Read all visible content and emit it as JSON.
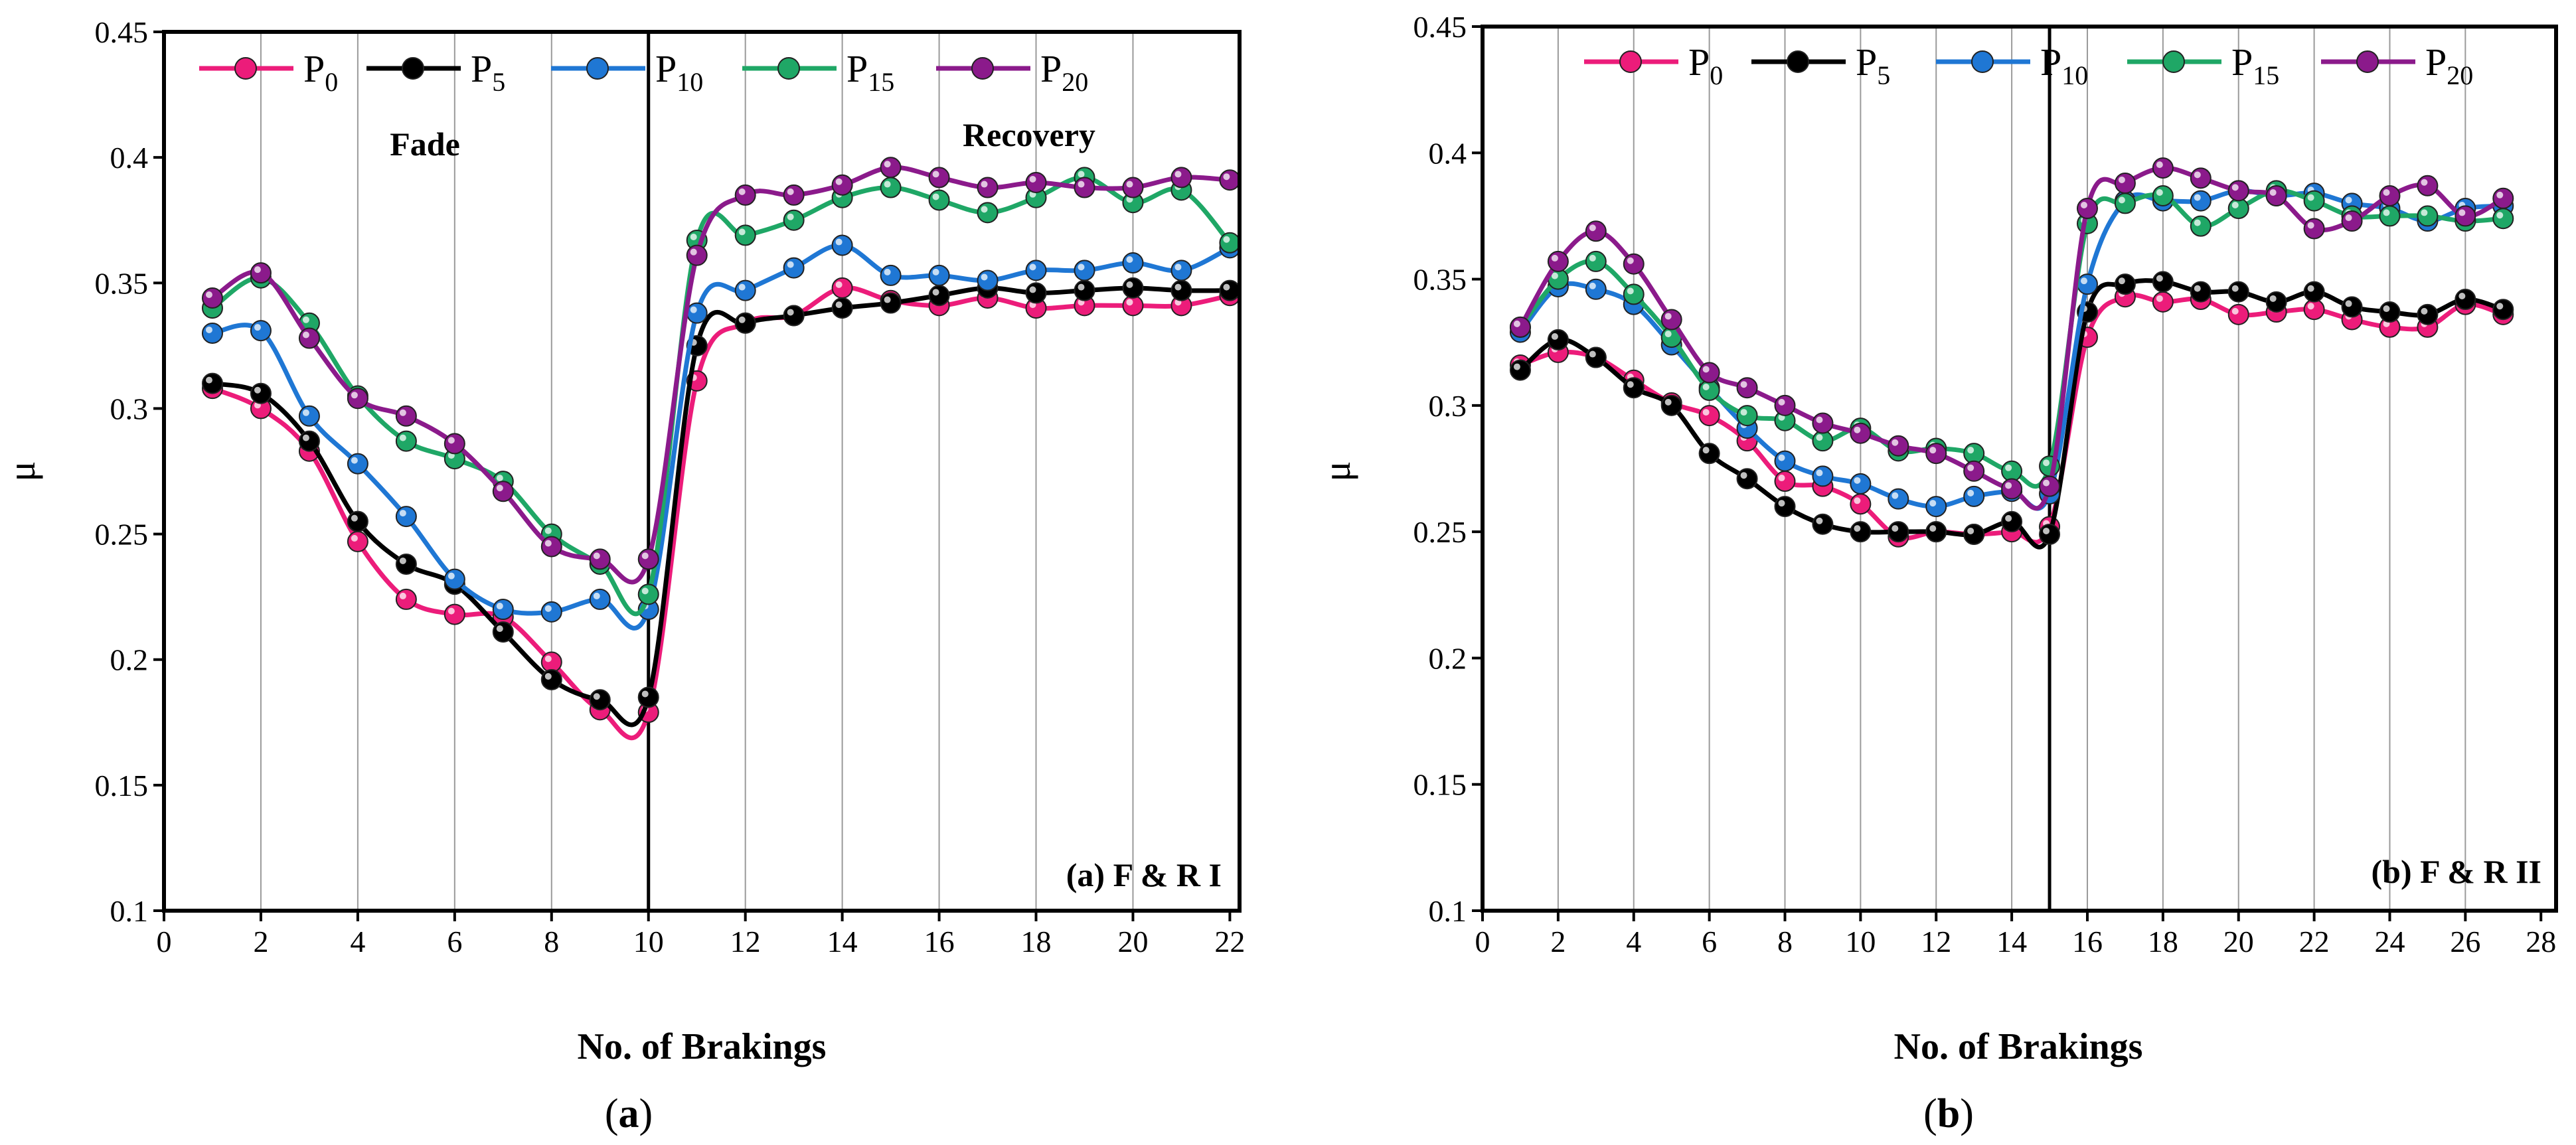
{
  "chart_data": [
    {
      "type": "line",
      "panel": "a",
      "caption": "a",
      "xlabel": "No. of Brakings",
      "ylabel": "μ",
      "xlim": [
        0,
        22.2
      ],
      "ylim": [
        0.1,
        0.45
      ],
      "xticks": [
        0,
        2,
        4,
        6,
        8,
        10,
        12,
        14,
        16,
        18,
        20,
        22
      ],
      "yticks": [
        0.1,
        0.15,
        0.2,
        0.25,
        0.3,
        0.35,
        0.4,
        0.45
      ],
      "ytick_labels": [
        "0.1",
        "0.15",
        "0.2",
        "0.25",
        "0.3",
        "0.35",
        "0.4",
        "0.45"
      ],
      "grid_x": [
        2,
        4,
        6,
        8,
        12,
        14,
        16,
        18,
        20
      ],
      "divider_x": 10,
      "annotations": {
        "fade": "Fade",
        "recovery": "Recovery",
        "corner": "(a) F & R I"
      },
      "x": [
        1,
        2,
        3,
        4,
        5,
        6,
        7,
        8,
        9,
        10,
        11,
        12,
        13,
        14,
        15,
        16,
        17,
        18,
        19,
        20,
        21,
        22
      ],
      "series": [
        {
          "name": "P",
          "sub": "0",
          "color": "#ec1c7a",
          "values": [
            0.308,
            0.3,
            0.283,
            0.247,
            0.224,
            0.218,
            0.217,
            0.199,
            0.18,
            0.179,
            0.311,
            0.334,
            0.337,
            0.348,
            0.343,
            0.341,
            0.344,
            0.34,
            0.341,
            0.341,
            0.341,
            0.345
          ]
        },
        {
          "name": "P",
          "sub": "5",
          "color": "#000000",
          "values": [
            0.31,
            0.306,
            0.287,
            0.255,
            0.238,
            0.23,
            0.211,
            0.192,
            0.184,
            0.185,
            0.325,
            0.334,
            0.337,
            0.34,
            0.342,
            0.345,
            0.348,
            0.346,
            0.347,
            0.348,
            0.347,
            0.347
          ]
        },
        {
          "name": "P",
          "sub": "10",
          "color": "#1f77d4",
          "values": [
            0.33,
            0.331,
            0.297,
            0.278,
            0.257,
            0.232,
            0.22,
            0.219,
            0.224,
            0.22,
            0.338,
            0.347,
            0.356,
            0.365,
            0.353,
            0.353,
            0.351,
            0.355,
            0.355,
            0.358,
            0.355,
            0.364
          ]
        },
        {
          "name": "P",
          "sub": "15",
          "color": "#1fa766",
          "values": [
            0.34,
            0.352,
            0.334,
            0.305,
            0.287,
            0.28,
            0.271,
            0.25,
            0.238,
            0.226,
            0.367,
            0.369,
            0.375,
            0.384,
            0.388,
            0.383,
            0.378,
            0.384,
            0.392,
            0.382,
            0.387,
            0.366
          ]
        },
        {
          "name": "P",
          "sub": "20",
          "color": "#8b1a8b",
          "values": [
            0.344,
            0.354,
            0.328,
            0.304,
            0.297,
            0.286,
            0.267,
            0.245,
            0.24,
            0.24,
            0.361,
            0.385,
            0.385,
            0.389,
            0.396,
            0.392,
            0.388,
            0.39,
            0.388,
            0.388,
            0.392,
            0.391
          ]
        }
      ]
    },
    {
      "type": "line",
      "panel": "b",
      "caption": "b",
      "xlabel": "No. of Brakings",
      "ylabel": "μ",
      "xlim": [
        0,
        28.4
      ],
      "ylim": [
        0.1,
        0.45
      ],
      "xticks": [
        0,
        2,
        4,
        6,
        8,
        10,
        12,
        14,
        16,
        18,
        20,
        22,
        24,
        26,
        28
      ],
      "yticks": [
        0.1,
        0.15,
        0.2,
        0.25,
        0.3,
        0.35,
        0.4,
        0.45
      ],
      "ytick_labels": [
        "0.1",
        "0.15",
        "0.2",
        "0.25",
        "0.3",
        "0.35",
        "0.4",
        "0.45"
      ],
      "grid_x": [
        2,
        4,
        6,
        8,
        10,
        12,
        14,
        16,
        18,
        20,
        22,
        24,
        26
      ],
      "divider_x": 15,
      "annotations": {
        "corner": "(b) F & R II"
      },
      "x": [
        1,
        2,
        3,
        4,
        5,
        6,
        7,
        8,
        9,
        10,
        11,
        12,
        13,
        14,
        15,
        16,
        17,
        18,
        19,
        20,
        21,
        22,
        23,
        24,
        25,
        26,
        27
      ],
      "series": [
        {
          "name": "P",
          "sub": "0",
          "color": "#ec1c7a",
          "values": [
            0.316,
            0.321,
            0.319,
            0.31,
            0.301,
            0.296,
            0.286,
            0.27,
            0.268,
            0.261,
            0.248,
            0.25,
            0.249,
            0.25,
            0.252,
            0.327,
            0.343,
            0.341,
            0.342,
            0.336,
            0.337,
            0.338,
            0.334,
            0.331,
            0.331,
            0.34,
            0.336
          ]
        },
        {
          "name": "P",
          "sub": "5",
          "color": "#000000",
          "values": [
            0.314,
            0.326,
            0.319,
            0.307,
            0.3,
            0.281,
            0.271,
            0.26,
            0.253,
            0.25,
            0.25,
            0.25,
            0.249,
            0.254,
            0.249,
            0.337,
            0.348,
            0.349,
            0.345,
            0.345,
            0.341,
            0.345,
            0.339,
            0.337,
            0.336,
            0.342,
            0.338
          ]
        },
        {
          "name": "P",
          "sub": "10",
          "color": "#1f77d4",
          "values": [
            0.329,
            0.347,
            0.346,
            0.34,
            0.324,
            0.307,
            0.291,
            0.278,
            0.272,
            0.269,
            0.263,
            0.26,
            0.264,
            0.266,
            0.265,
            0.348,
            0.381,
            0.381,
            0.381,
            0.385,
            0.383,
            0.384,
            0.38,
            0.378,
            0.373,
            0.378,
            0.379
          ]
        },
        {
          "name": "P",
          "sub": "15",
          "color": "#1fa766",
          "values": [
            0.331,
            0.35,
            0.357,
            0.344,
            0.327,
            0.306,
            0.296,
            0.294,
            0.286,
            0.291,
            0.282,
            0.283,
            0.281,
            0.274,
            0.276,
            0.372,
            0.38,
            0.383,
            0.371,
            0.378,
            0.385,
            0.381,
            0.375,
            0.375,
            0.375,
            0.373,
            0.374
          ]
        },
        {
          "name": "P",
          "sub": "20",
          "color": "#8b1a8b",
          "values": [
            0.331,
            0.357,
            0.369,
            0.356,
            0.334,
            0.313,
            0.307,
            0.3,
            0.293,
            0.289,
            0.284,
            0.281,
            0.274,
            0.267,
            0.268,
            0.378,
            0.388,
            0.394,
            0.39,
            0.385,
            0.383,
            0.37,
            0.373,
            0.383,
            0.387,
            0.375,
            0.382
          ]
        }
      ]
    }
  ]
}
